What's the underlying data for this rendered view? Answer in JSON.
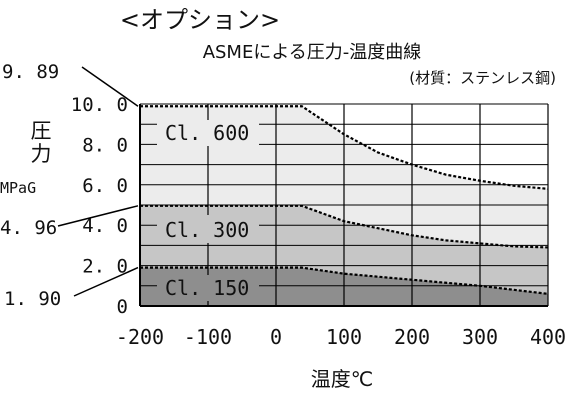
{
  "header": "<オプション>",
  "chart_data": {
    "type": "area",
    "title": "ASMEによる圧力-温度曲線",
    "subtitle": "(材質：ステンレス鋼)",
    "ylabel_lines": [
      "圧",
      "力"
    ],
    "yunit": "MPaG",
    "xlabel": "温度℃",
    "xlim": [
      -200,
      400
    ],
    "ylim": [
      0,
      10
    ],
    "xticks": [
      "-200",
      "-100",
      "0",
      "100",
      "200",
      "300",
      "400"
    ],
    "yticks": [
      {
        "value": 10,
        "label": "10. 0"
      },
      {
        "value": 8,
        "label": "8. 0"
      },
      {
        "value": 6,
        "label": "6. 0"
      },
      {
        "value": 4,
        "label": "4. 0"
      },
      {
        "value": 2,
        "label": "2. 0"
      },
      {
        "value": 0,
        "label": "0"
      }
    ],
    "grid": true,
    "series": [
      {
        "name": "Cl. 600",
        "color": "#ececec",
        "points": [
          [
            -200,
            9.89
          ],
          [
            38,
            9.89
          ],
          [
            100,
            8.5
          ],
          [
            150,
            7.6
          ],
          [
            200,
            7.0
          ],
          [
            250,
            6.5
          ],
          [
            300,
            6.2
          ],
          [
            350,
            5.95
          ],
          [
            400,
            5.8
          ]
        ]
      },
      {
        "name": "Cl. 300",
        "color": "#c6c6c6",
        "points": [
          [
            -200,
            4.96
          ],
          [
            38,
            4.96
          ],
          [
            100,
            4.2
          ],
          [
            150,
            3.85
          ],
          [
            200,
            3.5
          ],
          [
            250,
            3.25
          ],
          [
            300,
            3.1
          ],
          [
            350,
            2.95
          ],
          [
            400,
            2.9
          ]
        ]
      },
      {
        "name": "Cl. 150",
        "color": "#8e8e8e",
        "points": [
          [
            -200,
            1.9
          ],
          [
            38,
            1.9
          ],
          [
            100,
            1.6
          ],
          [
            150,
            1.45
          ],
          [
            200,
            1.3
          ],
          [
            250,
            1.15
          ],
          [
            300,
            1.0
          ],
          [
            350,
            0.8
          ],
          [
            400,
            0.6
          ]
        ]
      }
    ],
    "callouts": [
      {
        "label": "9. 89",
        "value": 9.89
      },
      {
        "label": "4. 96",
        "value": 4.96
      },
      {
        "label": "1. 90",
        "value": 1.9
      }
    ]
  }
}
